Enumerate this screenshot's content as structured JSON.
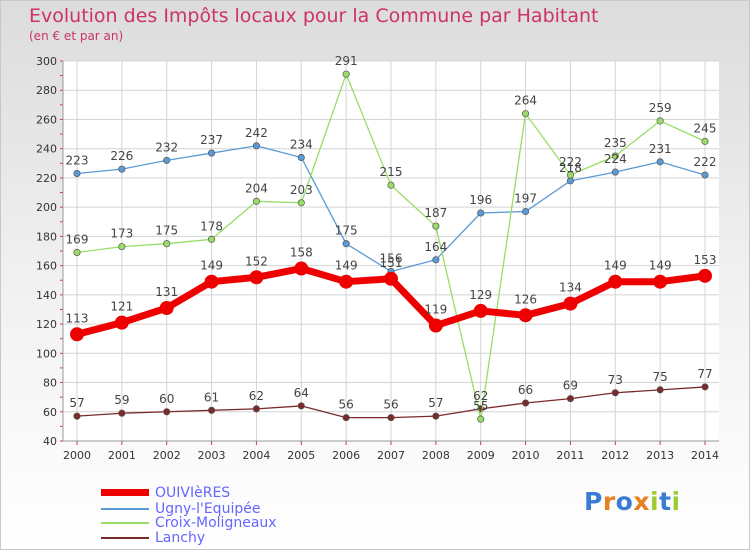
{
  "header": {
    "title": "Evolution des Impôts locaux pour la Commune par Habitant",
    "subtitle": "(en € et par an)"
  },
  "logo": {
    "text": "Proxiti",
    "letters": [
      "P",
      "r",
      "o",
      "x",
      "i",
      "t",
      "i"
    ],
    "colors": [
      "#3a7bd5",
      "#e67e22",
      "#3a7bd5",
      "#e67e22",
      "#9acd32",
      "#3a7bd5",
      "#9acd32"
    ]
  },
  "chart_data": {
    "type": "line",
    "title": "Evolution des Impôts locaux pour la Commune par Habitant",
    "subtitle": "(en € et par an)",
    "x": [
      2000,
      2001,
      2002,
      2003,
      2004,
      2005,
      2006,
      2007,
      2008,
      2009,
      2010,
      2011,
      2012,
      2013,
      2014
    ],
    "ylim": [
      40,
      300
    ],
    "yticks": [
      40,
      60,
      80,
      100,
      120,
      140,
      160,
      180,
      200,
      220,
      240,
      260,
      280,
      300
    ],
    "grid": true,
    "legend_position": "bottom-left",
    "series": [
      {
        "name": "OUIVIèRES",
        "color": "#ee0000",
        "values": [
          113,
          121,
          131,
          149,
          152,
          158,
          149,
          151,
          119,
          129,
          126,
          134,
          149,
          149,
          153
        ]
      },
      {
        "name": "Ugny-l'Equipée",
        "color": "#5b9bd5",
        "values": [
          223,
          226,
          232,
          237,
          242,
          234,
          175,
          156,
          164,
          196,
          197,
          218,
          224,
          231,
          222
        ]
      },
      {
        "name": "Croix-Moligneaux",
        "color": "#99dd66",
        "values": [
          169,
          173,
          175,
          178,
          204,
          203,
          291,
          215,
          187,
          55,
          264,
          222,
          235,
          259,
          245
        ]
      },
      {
        "name": "Lanchy",
        "color": "#7a2a2a",
        "values": [
          57,
          59,
          60,
          61,
          62,
          64,
          56,
          56,
          57,
          62,
          66,
          69,
          73,
          75,
          77
        ]
      }
    ]
  }
}
